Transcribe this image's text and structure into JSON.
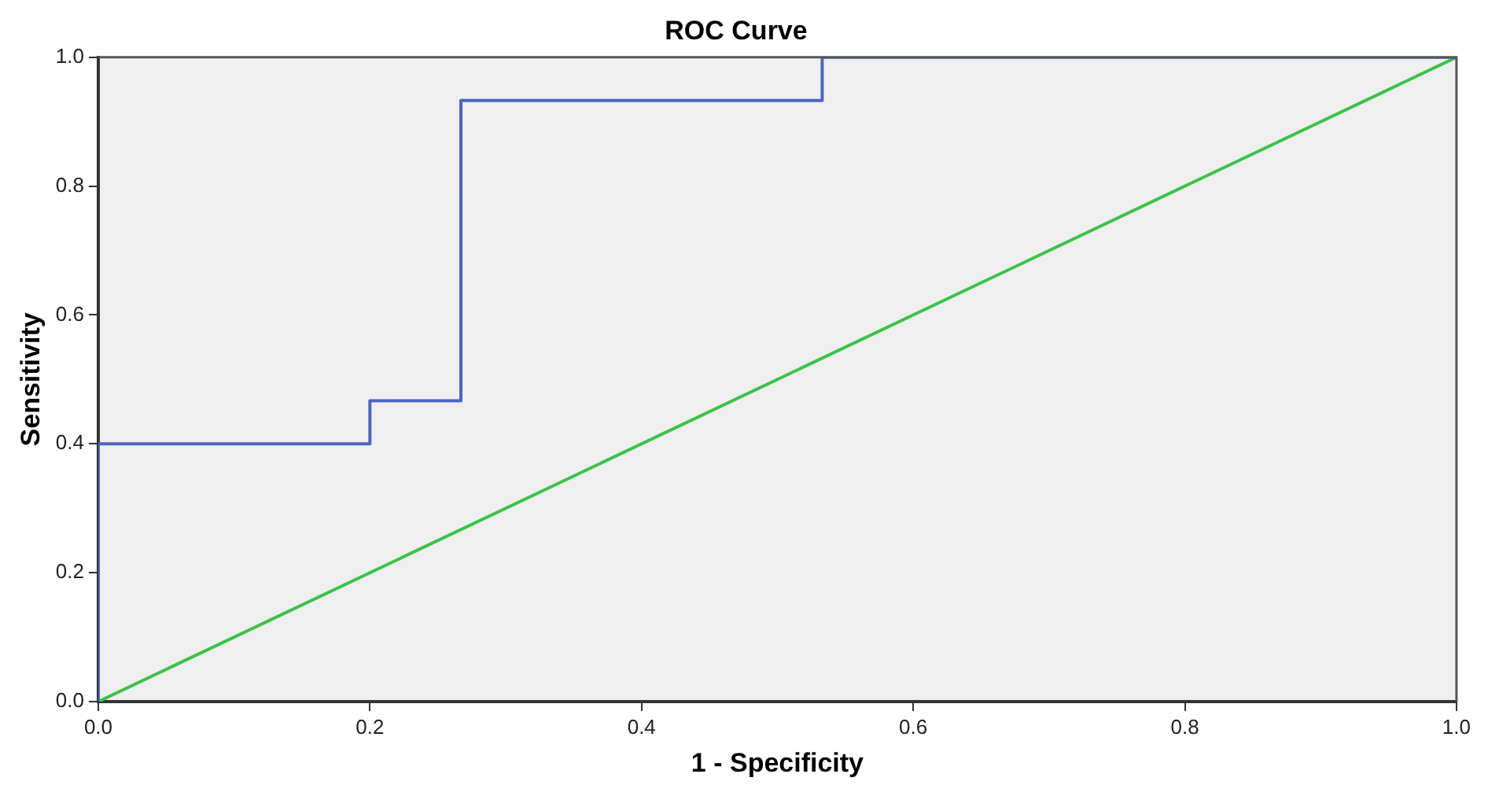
{
  "chart_data": {
    "type": "line",
    "title": "ROC Curve",
    "xlabel": "1 - Specificity",
    "ylabel": "Sensitivity",
    "series": [
      {
        "type": "step",
        "color": "#4a66c0",
        "x": [
          0,
          0,
          0.2,
          0.267,
          0.533,
          1
        ],
        "values": [
          0,
          0.4,
          0.467,
          0.933,
          1,
          1
        ]
      },
      {
        "type": "line",
        "color": "#3cc24a",
        "x": [
          0,
          1
        ],
        "values": [
          0,
          1
        ]
      }
    ],
    "xlim": [
      0,
      1
    ],
    "ylim": [
      0,
      1
    ],
    "xticks": [
      {
        "value": 0,
        "label": "0.0"
      },
      {
        "value": 0.2,
        "label": "0.2"
      },
      {
        "value": 0.4,
        "label": "0.4"
      },
      {
        "value": 0.6,
        "label": "0.6"
      },
      {
        "value": 0.8,
        "label": "0.8"
      },
      {
        "value": 1,
        "label": "1.0"
      }
    ],
    "yticks": [
      {
        "value": 0,
        "label": "0.0"
      },
      {
        "value": 0.2,
        "label": "0.2"
      },
      {
        "value": 0.4,
        "label": "0.4"
      },
      {
        "value": 0.6,
        "label": "0.6"
      },
      {
        "value": 0.8,
        "label": "0.8"
      },
      {
        "value": 1,
        "label": "1.0"
      }
    ],
    "marker": "none",
    "legend": false
  }
}
